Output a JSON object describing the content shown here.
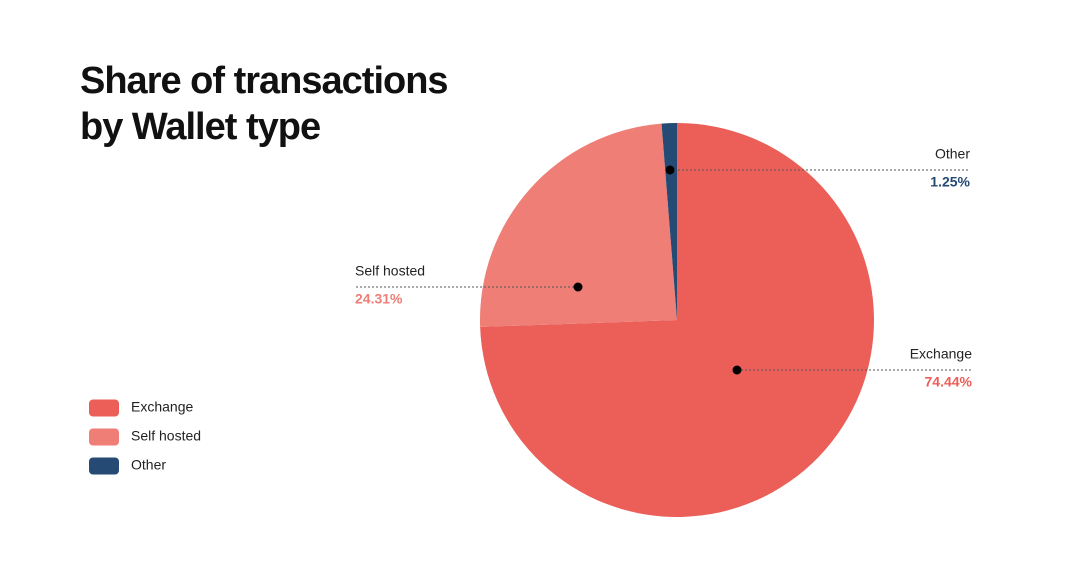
{
  "chart_data": {
    "type": "pie",
    "title": "Share of transactions by Wallet type",
    "categories": [
      "Exchange",
      "Self hosted",
      "Other"
    ],
    "values": [
      74.44,
      24.31,
      1.25
    ],
    "value_labels": [
      "74.44%",
      "24.31%",
      "1.25%"
    ],
    "colors": [
      "#ec5f59",
      "#ee7e76",
      "#254a73"
    ],
    "legend": "left"
  }
}
